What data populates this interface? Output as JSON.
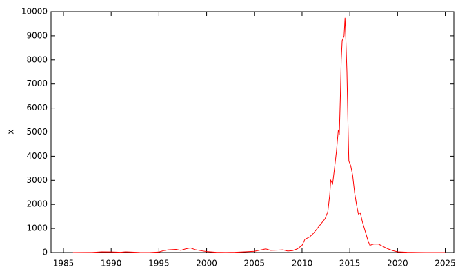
{
  "chart_data": {
    "type": "line",
    "y_label": "x",
    "x": [
      1986,
      1988,
      1989,
      1990,
      1991,
      1991.5,
      1992,
      1993,
      1994,
      1995,
      1995.5,
      1996,
      1996.8,
      1997.3,
      1997.8,
      1998.3,
      1998.8,
      1999.5,
      2000,
      2001,
      2002,
      2003,
      2004,
      2005,
      2005.6,
      2006.2,
      2006.7,
      2007.5,
      2008,
      2008.5,
      2009,
      2009.5,
      2010,
      2010.3,
      2010.8,
      2011.2,
      2011.6,
      2012,
      2012.4,
      2012.7,
      2012.9,
      2013,
      2013.2,
      2013.4,
      2013.6,
      2013.8,
      2013.9,
      2014.0,
      2014.1,
      2014.2,
      2014.4,
      2014.5,
      2014.6,
      2014.7,
      2014.8,
      2014.9,
      2015.0,
      2015.1,
      2015.3,
      2015.5,
      2015.7,
      2015.9,
      2016.1,
      2016.3,
      2016.6,
      2016.9,
      2017.1,
      2017.5,
      2018,
      2018.5,
      2019,
      2019.5,
      2020,
      2021,
      2022,
      2023,
      2024,
      2025
    ],
    "series": [
      {
        "color": "#ff0000",
        "values": [
          0,
          5,
          30,
          25,
          10,
          30,
          20,
          5,
          0,
          20,
          80,
          110,
          130,
          90,
          150,
          190,
          120,
          70,
          40,
          10,
          5,
          10,
          30,
          50,
          100,
          150,
          90,
          100,
          110,
          60,
          80,
          150,
          300,
          550,
          650,
          800,
          1000,
          1200,
          1400,
          1700,
          2400,
          3000,
          2850,
          3500,
          4200,
          5100,
          4900,
          6300,
          8000,
          8800,
          9000,
          9750,
          8700,
          7500,
          5500,
          3800,
          3700,
          3600,
          3200,
          2500,
          2000,
          1600,
          1650,
          1300,
          900,
          500,
          300,
          350,
          350,
          250,
          150,
          80,
          30,
          10,
          5,
          0,
          0,
          0
        ]
      }
    ],
    "xlim": [
      1983.7,
      2025.9
    ],
    "ylim": [
      0,
      10000
    ],
    "xticks": [
      1985,
      1990,
      1995,
      2000,
      2005,
      2010,
      2015,
      2020,
      2025
    ],
    "yticks": [
      0,
      1000,
      2000,
      3000,
      4000,
      5000,
      6000,
      7000,
      8000,
      9000,
      10000
    ]
  }
}
